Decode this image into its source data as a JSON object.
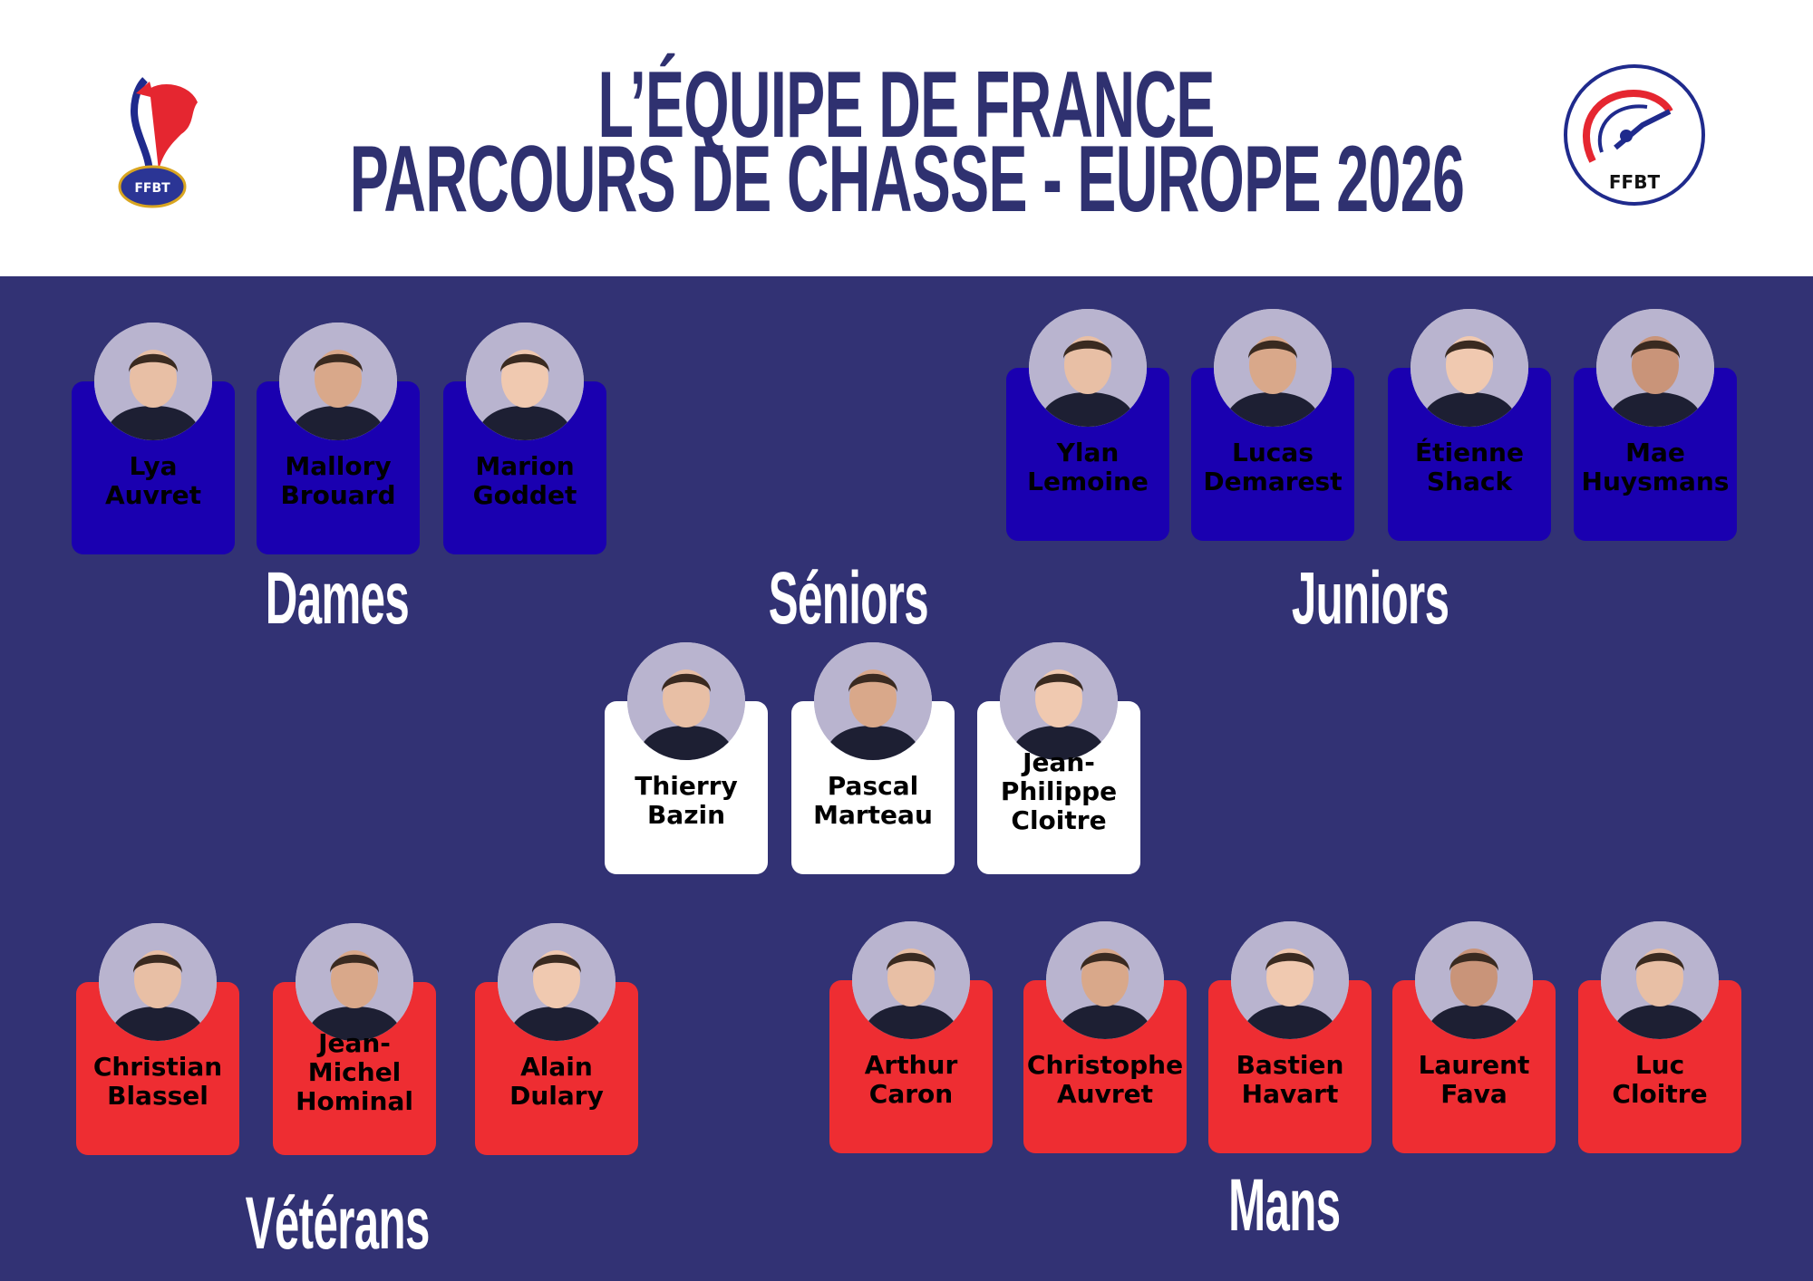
{
  "header": {
    "title_line1": "L’ÉQUIPE DE FRANCE",
    "title_line2": "PARCOURS DE CHASSE - EUROPE 2026",
    "left_logo_text": "FFBT",
    "right_logo_text": "FFBT"
  },
  "colors": {
    "background": "#323274",
    "title": "#2f3170",
    "dames_juniors_card": "#1a00b0",
    "seniors_card": "#ffffff",
    "veterans_mans_card": "#ee2d32"
  },
  "sections": {
    "dames": {
      "label": "Dames",
      "members": [
        {
          "first": "Lya",
          "last": "Auvret"
        },
        {
          "first": "Mallory",
          "last": "Brouard"
        },
        {
          "first": "Marion",
          "last": "Goddet"
        }
      ]
    },
    "seniors": {
      "label": "Séniors",
      "members": [
        {
          "first": "Thierry",
          "last": "Bazin"
        },
        {
          "first": "Pascal",
          "last": "Marteau"
        },
        {
          "first": "Jean-",
          "last": "Philippe Cloitre"
        }
      ]
    },
    "juniors": {
      "label": "Juniors",
      "members": [
        {
          "first": "Ylan",
          "last": "Lemoine"
        },
        {
          "first": "Lucas",
          "last": "Demarest"
        },
        {
          "first": "Étienne",
          "last": "Shack"
        },
        {
          "first": "Mae",
          "last": "Huysmans"
        }
      ]
    },
    "veterans": {
      "label": "Vétérans",
      "members": [
        {
          "first": "Christian",
          "last": "Blassel"
        },
        {
          "first": "Jean-",
          "last": "Michel Hominal"
        },
        {
          "first": "Alain",
          "last": "Dulary"
        }
      ]
    },
    "mans": {
      "label": "Mans",
      "members": [
        {
          "first": "Arthur",
          "last": "Caron"
        },
        {
          "first": "Christophe",
          "last": "Auvret"
        },
        {
          "first": "Bastien",
          "last": "Havart"
        },
        {
          "first": "Laurent",
          "last": "Fava"
        },
        {
          "first": "Luc",
          "last": "Cloitre"
        }
      ]
    }
  }
}
